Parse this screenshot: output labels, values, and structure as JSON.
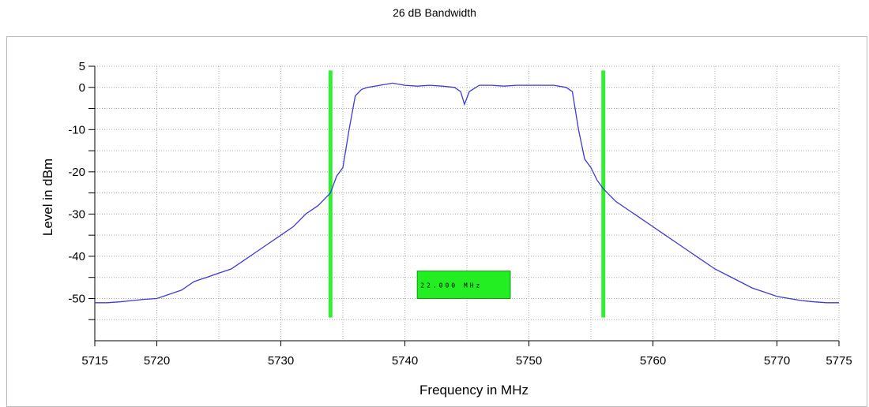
{
  "chart_data": {
    "type": "line",
    "title": "26 dB Bandwidth",
    "xlabel": "Frequency in MHz",
    "ylabel": "Level in dBm",
    "xlim": [
      5715,
      5775
    ],
    "ylim": [
      -60,
      5
    ],
    "x_ticks": [
      5715,
      5720,
      5730,
      5740,
      5750,
      5760,
      5770,
      5775
    ],
    "y_ticks": [
      5,
      0,
      -10,
      -20,
      -30,
      -40,
      -50
    ],
    "grid": true,
    "series": [
      {
        "color": "#3b3bd6",
        "points": [
          [
            5715.0,
            -51.0
          ],
          [
            5716.0,
            -51.0
          ],
          [
            5717.0,
            -50.8
          ],
          [
            5718.0,
            -50.5
          ],
          [
            5719.0,
            -50.2
          ],
          [
            5720.0,
            -50.0
          ],
          [
            5721.0,
            -49.0
          ],
          [
            5722.0,
            -48.0
          ],
          [
            5723.0,
            -46.0
          ],
          [
            5724.0,
            -45.0
          ],
          [
            5725.0,
            -44.0
          ],
          [
            5726.0,
            -43.0
          ],
          [
            5727.0,
            -41.0
          ],
          [
            5728.0,
            -39.0
          ],
          [
            5729.0,
            -37.0
          ],
          [
            5730.0,
            -35.0
          ],
          [
            5731.0,
            -33.0
          ],
          [
            5732.0,
            -30.0
          ],
          [
            5733.0,
            -28.0
          ],
          [
            5734.0,
            -25.0
          ],
          [
            5734.5,
            -21.0
          ],
          [
            5735.0,
            -19.0
          ],
          [
            5735.5,
            -10.0
          ],
          [
            5736.0,
            -2.0
          ],
          [
            5736.5,
            -0.5
          ],
          [
            5737.0,
            0.0
          ],
          [
            5738.0,
            0.5
          ],
          [
            5739.0,
            1.0
          ],
          [
            5740.0,
            0.5
          ],
          [
            5741.0,
            0.3
          ],
          [
            5742.0,
            0.5
          ],
          [
            5743.0,
            0.3
          ],
          [
            5744.0,
            0.0
          ],
          [
            5744.5,
            -1.0
          ],
          [
            5744.8,
            -4.0
          ],
          [
            5745.2,
            -1.0
          ],
          [
            5746.0,
            0.5
          ],
          [
            5747.0,
            0.5
          ],
          [
            5748.0,
            0.3
          ],
          [
            5749.0,
            0.5
          ],
          [
            5750.0,
            0.5
          ],
          [
            5751.0,
            0.5
          ],
          [
            5752.0,
            0.5
          ],
          [
            5753.0,
            0.0
          ],
          [
            5753.5,
            -1.0
          ],
          [
            5754.0,
            -10.0
          ],
          [
            5754.5,
            -17.0
          ],
          [
            5755.0,
            -19.0
          ],
          [
            5755.5,
            -22.0
          ],
          [
            5756.0,
            -24.0
          ],
          [
            5757.0,
            -27.0
          ],
          [
            5758.0,
            -29.0
          ],
          [
            5759.0,
            -31.0
          ],
          [
            5760.0,
            -33.0
          ],
          [
            5761.0,
            -35.0
          ],
          [
            5762.0,
            -37.0
          ],
          [
            5763.0,
            -39.0
          ],
          [
            5764.0,
            -41.0
          ],
          [
            5765.0,
            -43.0
          ],
          [
            5766.0,
            -44.5
          ],
          [
            5767.0,
            -46.0
          ],
          [
            5768.0,
            -47.5
          ],
          [
            5769.0,
            -48.5
          ],
          [
            5770.0,
            -49.5
          ],
          [
            5771.0,
            -50.0
          ],
          [
            5772.0,
            -50.5
          ],
          [
            5773.0,
            -50.8
          ],
          [
            5774.0,
            -51.0
          ],
          [
            5775.0,
            -51.0
          ]
        ]
      }
    ],
    "markers": [
      {
        "x": 5734.0,
        "color": "#33ee33"
      },
      {
        "x": 5756.0,
        "color": "#33ee33"
      }
    ],
    "bandwidth_box": {
      "label": "22.000 MHz",
      "color": "#22ee22"
    }
  }
}
